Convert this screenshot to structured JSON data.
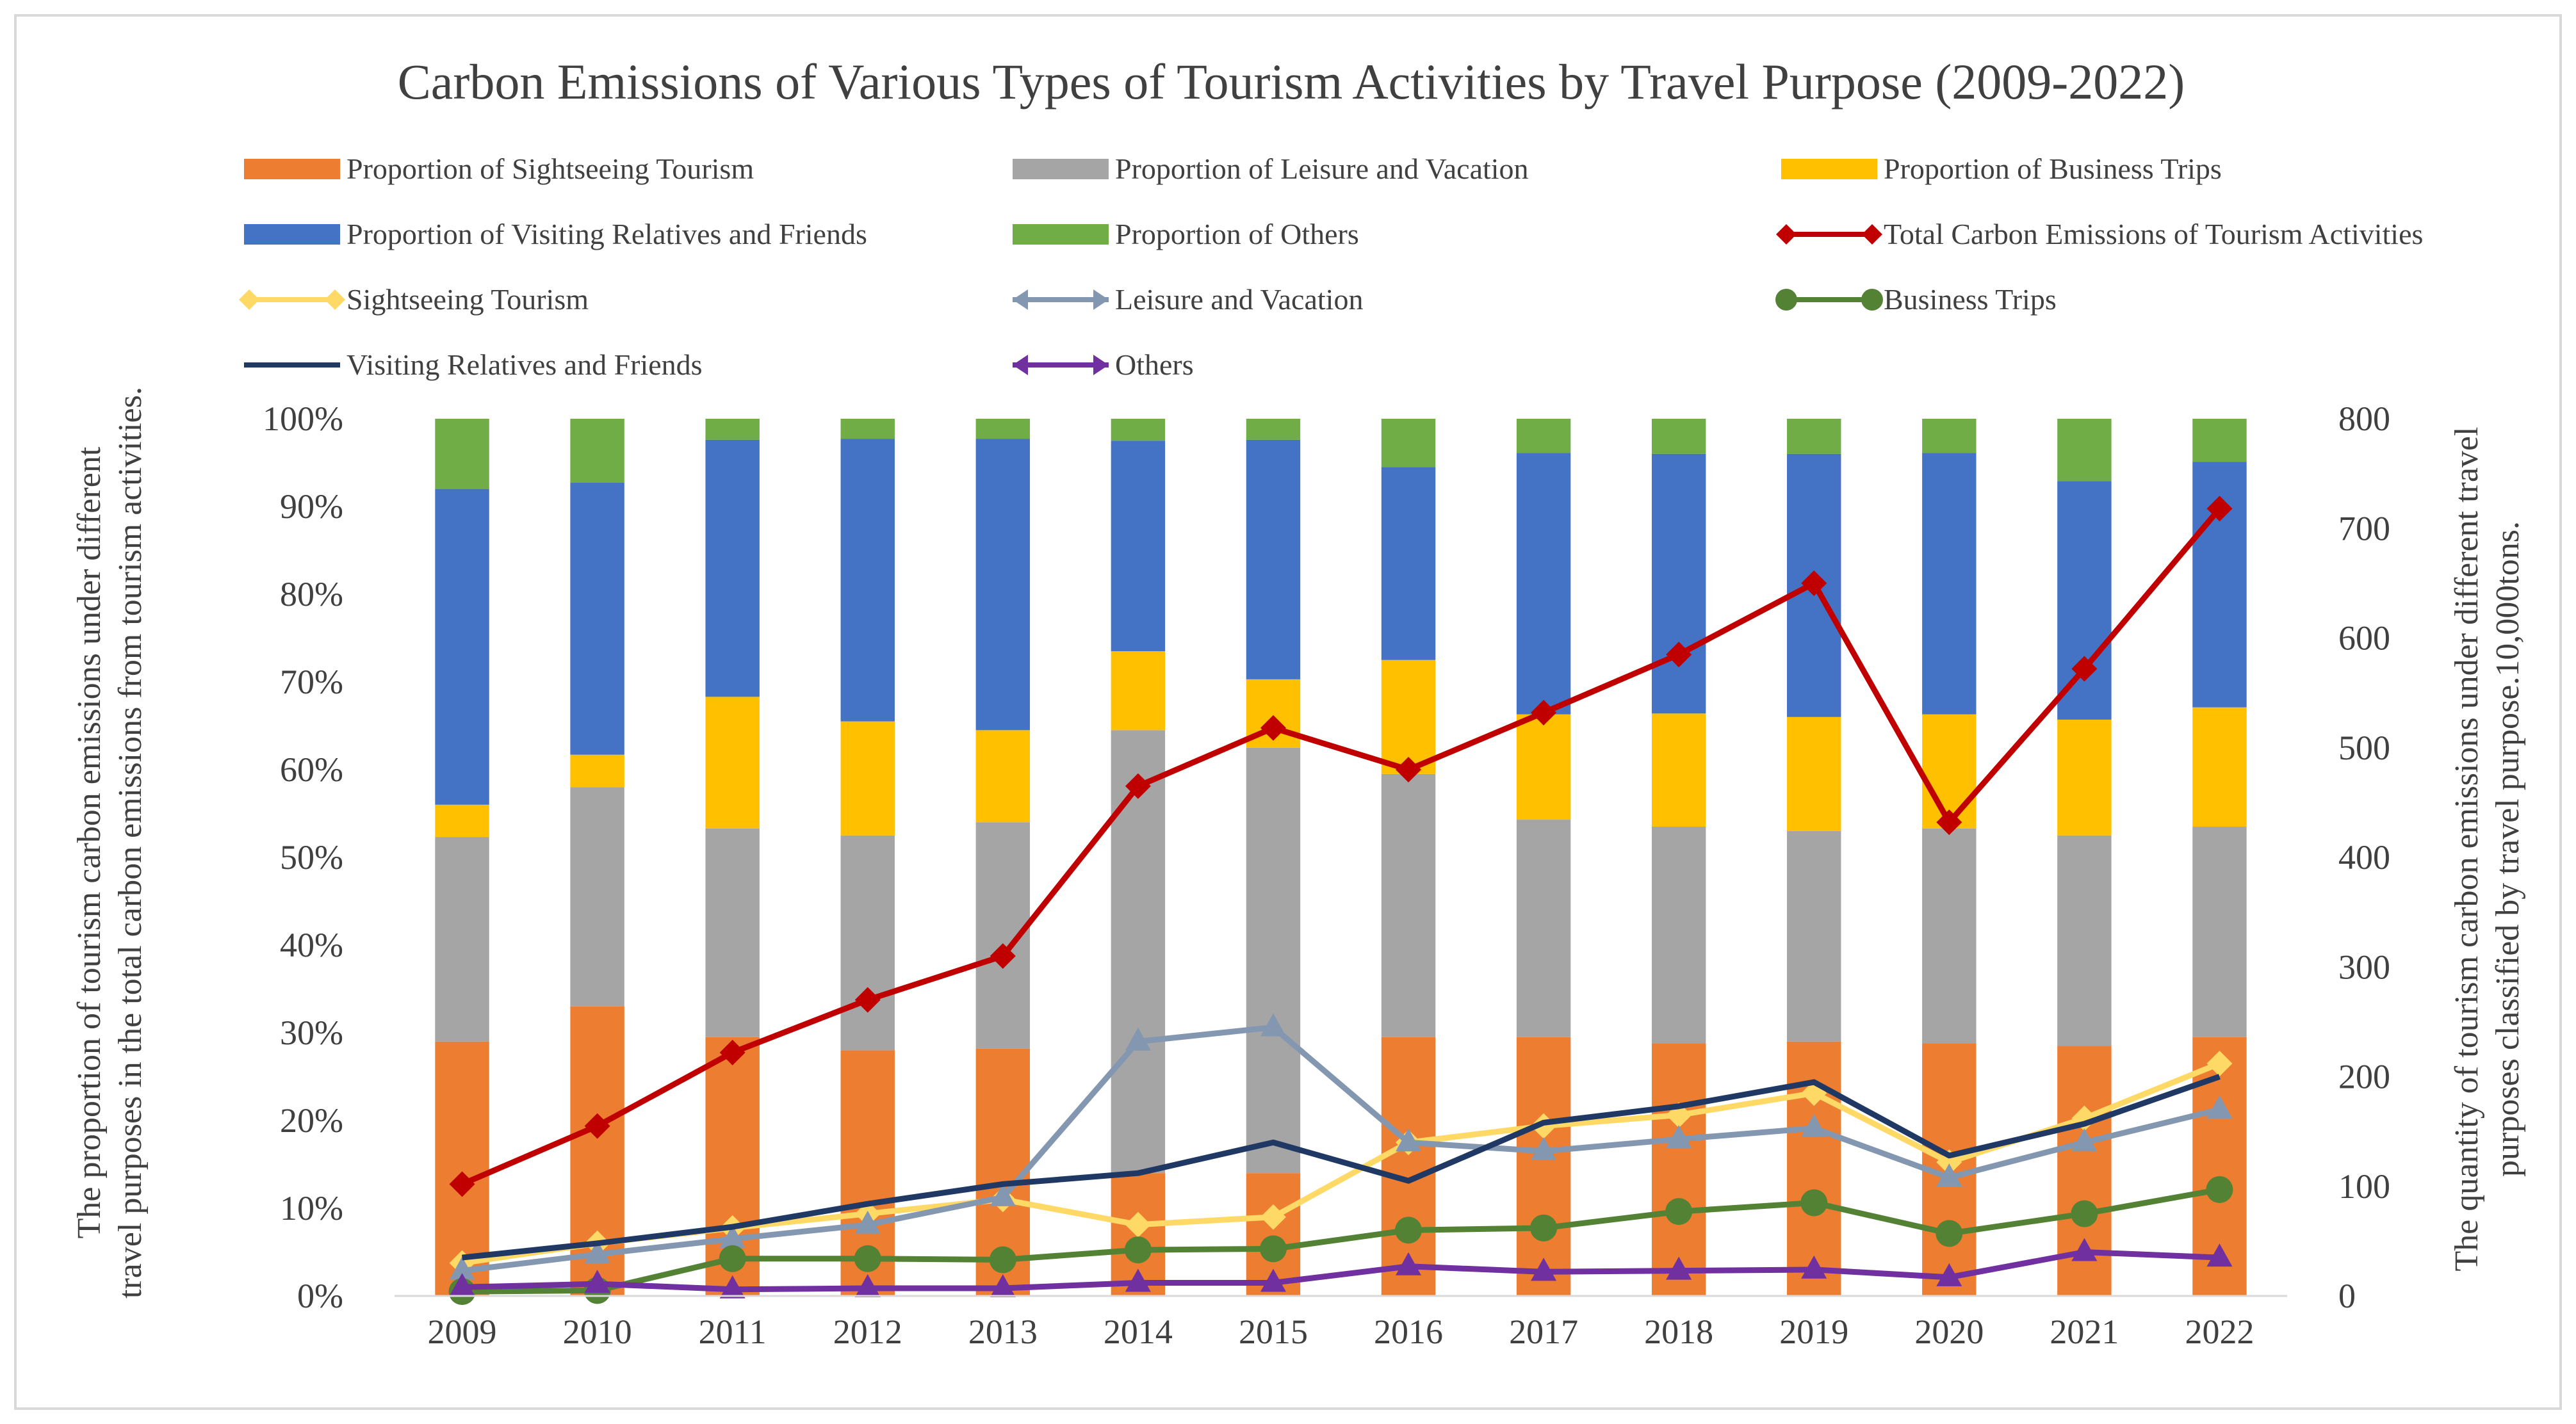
{
  "chart_data": {
    "type": "bar",
    "title": "Carbon Emissions of Various Types of Tourism Activities by Travel Purpose (2009-2022)",
    "ylabel_left": "The proportion of tourism carbon emissions under different travel purposes in the total carbon emissions from tourism activities.",
    "ylabel_right": "The quantity of tourism carbon emissions under different travel purposes classified by travel purpose.10,000tons.",
    "categories": [
      "2009",
      "2010",
      "2011",
      "2012",
      "2013",
      "2014",
      "2015",
      "2016",
      "2017",
      "2018",
      "2019",
      "2020",
      "2021",
      "2022"
    ],
    "ylim_left": [
      0,
      100
    ],
    "ylim_right": [
      0,
      800
    ],
    "left_ticks": [
      "0%",
      "10%",
      "20%",
      "30%",
      "40%",
      "50%",
      "60%",
      "70%",
      "80%",
      "90%",
      "100%"
    ],
    "right_ticks": [
      "0",
      "100",
      "200",
      "300",
      "400",
      "500",
      "600",
      "700",
      "800"
    ],
    "stacked_series": [
      {
        "name": "Proportion of Sightseeing Tourism",
        "color": "#ed7d31",
        "values": [
          29,
          33,
          29.5,
          28,
          28.2,
          14,
          14,
          29.5,
          29.5,
          28.8,
          29,
          28.8,
          28.5,
          29.5
        ]
      },
      {
        "name": "Proportion of Leisure and Vacation",
        "color": "#a5a5a5",
        "values": [
          23.3,
          25,
          23.8,
          24.5,
          25.8,
          50.5,
          48.5,
          30,
          24.8,
          24.7,
          24,
          24.5,
          24,
          24
        ]
      },
      {
        "name": "Proportion of Business Trips",
        "color": "#ffc000",
        "values": [
          3.7,
          3.7,
          15,
          13,
          10.5,
          9,
          7.8,
          13,
          12,
          12.9,
          13,
          13,
          13.2,
          13.6
        ]
      },
      {
        "name": "Proportion of Visiting Relatives and Friends",
        "color": "#4472c4",
        "values": [
          36,
          31,
          29.3,
          32.2,
          33.2,
          24,
          27.3,
          22,
          29.8,
          29.6,
          30,
          29.8,
          27.2,
          28
        ]
      },
      {
        "name": "Proportion of Others",
        "color": "#70ad47",
        "values": [
          8,
          7.3,
          2.4,
          2.3,
          2.3,
          2.5,
          2.4,
          5.5,
          3.9,
          4,
          4,
          3.9,
          7.1,
          4.9
        ]
      }
    ],
    "line_series": [
      {
        "name": "Total Carbon Emissions of Tourism Activities",
        "color": "#c00000",
        "marker": "diamond",
        "values": [
          102,
          155,
          222,
          270,
          310,
          465,
          518,
          480,
          532,
          585,
          650,
          432,
          572,
          718
        ]
      },
      {
        "name": "Sightseeing Tourism",
        "color": "#ffd966",
        "marker": "diamond",
        "values": [
          30,
          48,
          62,
          75,
          88,
          65,
          72,
          140,
          155,
          165,
          185,
          122,
          162,
          212
        ]
      },
      {
        "name": "Leisure and Vacation",
        "color": "#8497b0",
        "marker": "arrow",
        "values": [
          23,
          38,
          52,
          65,
          90,
          232,
          245,
          140,
          132,
          143,
          153,
          108,
          140,
          170
        ]
      },
      {
        "name": "Business Trips",
        "color": "#548235",
        "marker": "circle",
        "values": [
          4,
          5,
          34,
          34,
          33,
          42,
          43,
          60,
          62,
          77,
          85,
          57,
          75,
          97
        ]
      },
      {
        "name": "Visiting Relatives and Friends",
        "color": "#1f3864",
        "marker": "none",
        "values": [
          35,
          48,
          63,
          84,
          102,
          112,
          140,
          105,
          158,
          173,
          195,
          128,
          157,
          200
        ]
      },
      {
        "name": "Others",
        "color": "#7030a0",
        "marker": "arrow",
        "values": [
          8,
          11,
          6,
          7,
          7,
          12,
          12,
          27,
          22,
          23,
          24,
          17,
          40,
          35
        ]
      }
    ]
  }
}
